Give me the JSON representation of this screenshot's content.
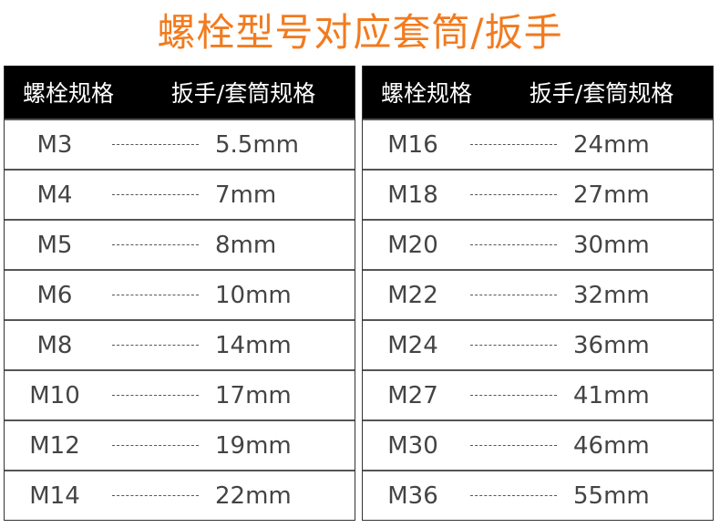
{
  "title": "螺栓型号对应套筒/扳手",
  "header": {
    "bolt": "螺栓规格",
    "wrench": "扳手/套筒规格"
  },
  "left": [
    [
      "M3",
      "5.5mm"
    ],
    [
      "M4",
      "7mm"
    ],
    [
      "M5",
      "8mm"
    ],
    [
      "M6",
      "10mm"
    ],
    [
      "M8",
      "14mm"
    ],
    [
      "M10",
      "17mm"
    ],
    [
      "M12",
      "19mm"
    ],
    [
      "M14",
      "22mm"
    ]
  ],
  "right": [
    [
      "M16",
      "24mm"
    ],
    [
      "M18",
      "27mm"
    ],
    [
      "M20",
      "30mm"
    ],
    [
      "M22",
      "32mm"
    ],
    [
      "M24",
      "36mm"
    ],
    [
      "M27",
      "41mm"
    ],
    [
      "M30",
      "46mm"
    ],
    [
      "M36",
      "55mm"
    ]
  ],
  "colors": {
    "title": "#f27b1f",
    "header_bg": "#000000"
  }
}
